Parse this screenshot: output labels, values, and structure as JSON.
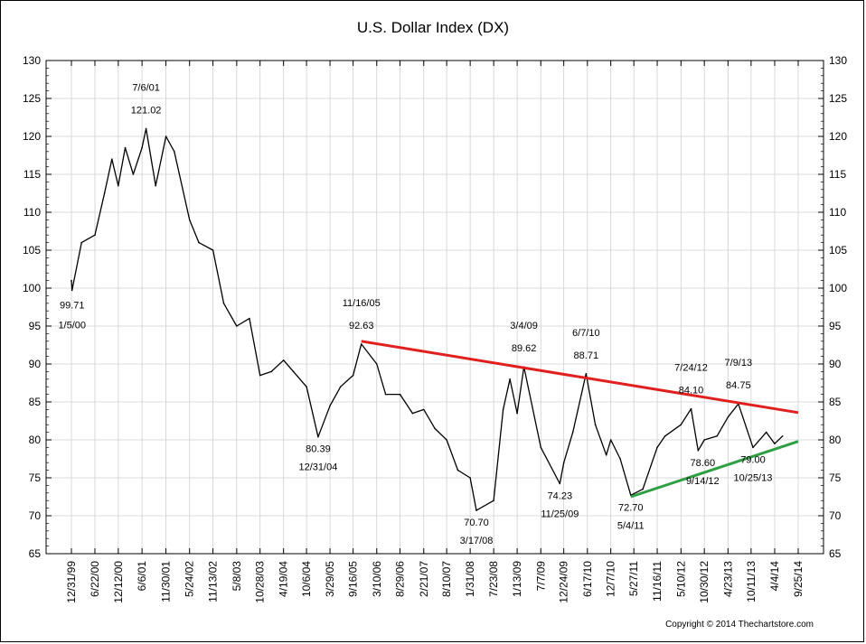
{
  "chart_data": {
    "type": "line",
    "title": "U.S. Dollar Index (DX)",
    "copyright": "Copyright © 2014 Thechartstore.com",
    "ylim": [
      65,
      130
    ],
    "y_ticks": [
      65,
      70,
      75,
      80,
      85,
      90,
      95,
      100,
      105,
      110,
      115,
      120,
      125,
      130
    ],
    "x_ticks": [
      "12/31/99",
      "6/22/00",
      "12/12/00",
      "6/6/01",
      "11/30/01",
      "5/24/02",
      "11/13/02",
      "5/8/03",
      "10/28/03",
      "4/19/04",
      "10/6/04",
      "3/29/05",
      "9/16/05",
      "3/10/06",
      "8/29/06",
      "2/21/07",
      "8/10/07",
      "1/31/08",
      "7/23/08",
      "1/13/09",
      "7/7/09",
      "12/24/09",
      "6/17/10",
      "12/7/10",
      "5/27/11",
      "11/16/11",
      "5/10/12",
      "10/30/12",
      "4/23/13",
      "10/11/13",
      "4/4/14",
      "9/25/14"
    ],
    "grid": true,
    "series": [
      {
        "name": "",
        "color": "#000000",
        "x": [
          "12/31/99",
          "1/5/00",
          "3/15/00",
          "6/22/00",
          "9/1/00",
          "10/26/00",
          "12/12/00",
          "2/1/01",
          "4/2/01",
          "6/6/01",
          "7/6/01",
          "9/15/01",
          "11/30/01",
          "1/31/02",
          "5/24/02",
          "8/1/02",
          "11/13/02",
          "2/1/03",
          "5/8/03",
          "8/10/03",
          "10/28/03",
          "1/20/04",
          "4/19/04",
          "7/1/04",
          "10/6/04",
          "12/31/04",
          "3/29/05",
          "6/15/05",
          "9/16/05",
          "11/16/05",
          "3/10/06",
          "5/15/06",
          "8/29/06",
          "11/30/06",
          "2/21/07",
          "5/15/07",
          "8/10/07",
          "11/1/07",
          "1/31/08",
          "3/17/08",
          "7/23/08",
          "10/1/08",
          "11/20/08",
          "1/13/09",
          "3/4/09",
          "7/7/09",
          "11/25/09",
          "12/24/09",
          "3/1/10",
          "6/7/10",
          "8/15/10",
          "11/4/10",
          "12/7/10",
          "2/15/11",
          "5/4/11",
          "8/1/11",
          "11/16/11",
          "1/13/12",
          "5/10/12",
          "7/24/12",
          "9/14/12",
          "10/30/12",
          "2/1/13",
          "4/23/13",
          "7/9/13",
          "10/25/13",
          "2/1/14",
          "4/4/14",
          "6/1/14"
        ],
        "values": [
          101.0,
          99.71,
          106.0,
          107.0,
          112.5,
          117.0,
          113.5,
          118.5,
          115.0,
          118.5,
          121.02,
          113.5,
          120.0,
          118.0,
          109.0,
          106.0,
          105.0,
          98.0,
          95.0,
          96.0,
          88.5,
          89.0,
          90.5,
          89.0,
          87.0,
          80.39,
          84.5,
          87.0,
          88.5,
          92.63,
          90.0,
          86.0,
          86.0,
          83.5,
          84.0,
          81.5,
          80.0,
          76.0,
          75.0,
          70.7,
          72.0,
          84.0,
          88.0,
          83.5,
          89.62,
          79.0,
          74.23,
          77.0,
          81.0,
          88.71,
          82.0,
          78.0,
          80.0,
          77.5,
          72.7,
          73.5,
          79.0,
          80.5,
          82.0,
          84.1,
          78.6,
          80.0,
          80.5,
          83.0,
          84.75,
          79.0,
          81.0,
          79.5,
          80.5
        ]
      },
      {
        "name": "",
        "color": "#e0201e",
        "x": [
          "11/16/05",
          "9/25/14"
        ],
        "values": [
          93.0,
          83.6
        ]
      },
      {
        "name": "",
        "color": "#2ea043",
        "x": [
          "5/4/11",
          "9/25/14"
        ],
        "values": [
          72.5,
          79.8
        ]
      }
    ],
    "annotations": [
      {
        "date": "7/6/01",
        "value": "121.02"
      },
      {
        "date": "1/5/00",
        "value": "99.71"
      },
      {
        "date": "11/16/05",
        "value": "92.63"
      },
      {
        "date": "12/31/04",
        "value": "80.39"
      },
      {
        "date": "3/4/09",
        "value": "89.62"
      },
      {
        "date": "6/7/10",
        "value": "88.71"
      },
      {
        "date": "3/17/08",
        "value": "70.70"
      },
      {
        "date": "11/25/09",
        "value": "74.23"
      },
      {
        "date": "5/4/11",
        "value": "72.70"
      },
      {
        "date": "7/24/12",
        "value": "84.10"
      },
      {
        "date": "9/14/12",
        "value": "78.60"
      },
      {
        "date": "7/9/13",
        "value": "84.75"
      },
      {
        "date": "10/25/13",
        "value": "79.00"
      }
    ]
  }
}
